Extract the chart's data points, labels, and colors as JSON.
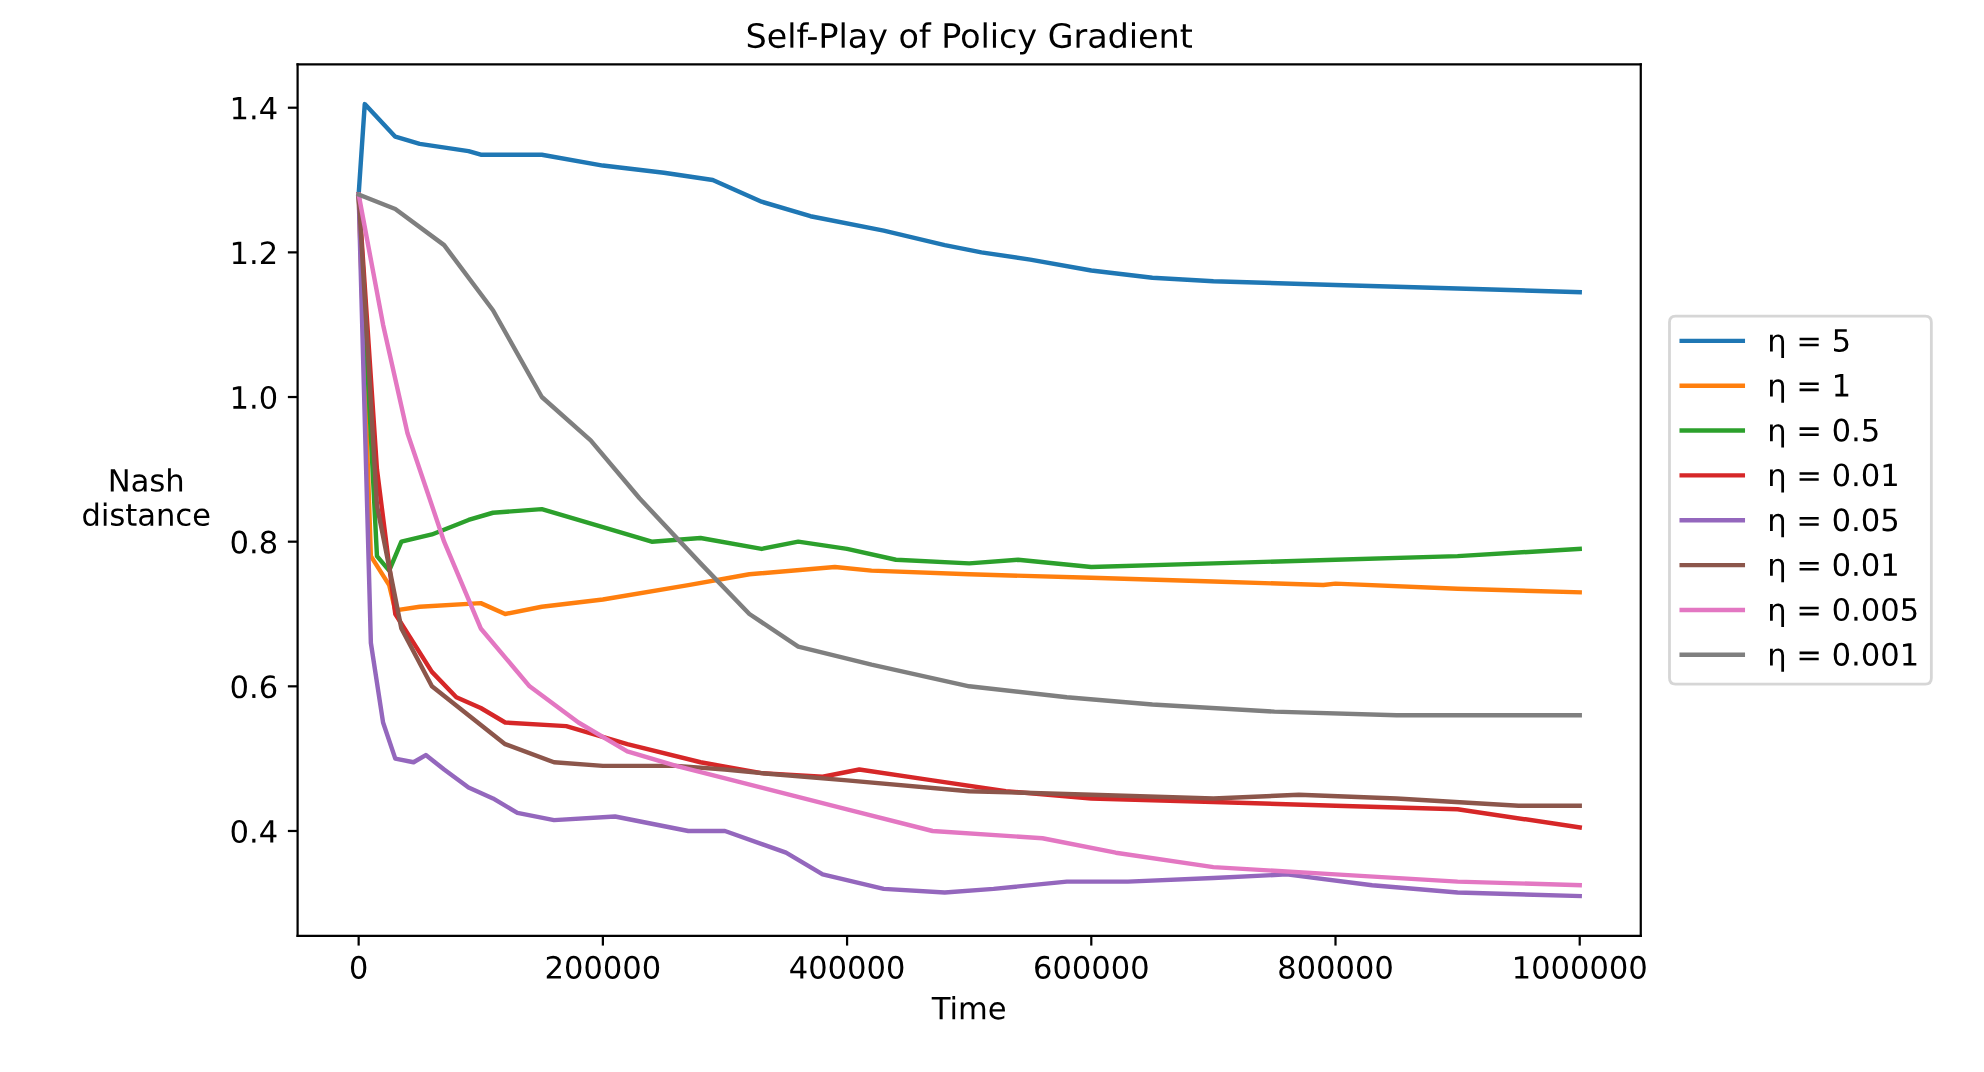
{
  "chart_data": {
    "type": "line",
    "title": "Self-Play of Policy Gradient",
    "xlabel": "Time",
    "ylabel": "Nash\ndistance",
    "xlim": [
      -50000,
      1050000
    ],
    "xticks": [
      0,
      200000,
      400000,
      600000,
      800000,
      1000000
    ],
    "ylim": [
      0.255,
      1.46
    ],
    "yticks": [
      0.4,
      0.6,
      0.8,
      {
        "value": 1.0,
        "label": "1.0"
      },
      1.2,
      1.4
    ],
    "grid": false,
    "legend": "right",
    "line_style": "solid",
    "marker": "none",
    "series": [
      {
        "name": "η = 5",
        "color": "#1f77b4",
        "x": [
          0,
          5000,
          30000,
          50000,
          90000,
          100000,
          150000,
          200000,
          250000,
          290000,
          330000,
          370000,
          430000,
          480000,
          510000,
          550000,
          600000,
          650000,
          700000,
          800000,
          900000,
          1000000
        ],
        "values": [
          1.28,
          1.405,
          1.36,
          1.35,
          1.34,
          1.335,
          1.335,
          1.32,
          1.31,
          1.3,
          1.27,
          1.25,
          1.23,
          1.21,
          1.2,
          1.19,
          1.175,
          1.165,
          1.16,
          1.155,
          1.15,
          1.145
        ]
      },
      {
        "name": "η = 1",
        "color": "#ff7f0e",
        "x": [
          0,
          10000,
          25000,
          30000,
          50000,
          100000,
          120000,
          150000,
          200000,
          270000,
          320000,
          390000,
          420000,
          500000,
          600000,
          700000,
          790000,
          800000,
          900000,
          1000000
        ],
        "values": [
          1.28,
          0.78,
          0.74,
          0.705,
          0.71,
          0.715,
          0.7,
          0.71,
          0.72,
          0.74,
          0.755,
          0.765,
          0.76,
          0.755,
          0.75,
          0.745,
          0.74,
          0.742,
          0.735,
          0.73
        ]
      },
      {
        "name": "η = 0.5",
        "color": "#2ca02c",
        "x": [
          0,
          15000,
          25000,
          35000,
          60000,
          90000,
          110000,
          150000,
          200000,
          240000,
          280000,
          330000,
          360000,
          400000,
          440000,
          500000,
          540000,
          600000,
          700000,
          800000,
          900000,
          1000000
        ],
        "values": [
          1.28,
          0.78,
          0.76,
          0.8,
          0.81,
          0.83,
          0.84,
          0.845,
          0.82,
          0.8,
          0.805,
          0.79,
          0.8,
          0.79,
          0.775,
          0.77,
          0.775,
          0.765,
          0.77,
          0.775,
          0.78,
          0.79
        ]
      },
      {
        "name": "η = 0.01",
        "color": "#d62728",
        "x": [
          0,
          15000,
          30000,
          60000,
          80000,
          100000,
          120000,
          170000,
          220000,
          280000,
          330000,
          380000,
          410000,
          470000,
          530000,
          600000,
          700000,
          800000,
          900000,
          1000000
        ],
        "values": [
          1.28,
          0.9,
          0.7,
          0.62,
          0.585,
          0.57,
          0.55,
          0.545,
          0.52,
          0.495,
          0.48,
          0.475,
          0.485,
          0.47,
          0.455,
          0.445,
          0.44,
          0.435,
          0.43,
          0.405
        ]
      },
      {
        "name": "η = 0.05",
        "color": "#9467bd",
        "x": [
          0,
          10000,
          20000,
          30000,
          45000,
          55000,
          70000,
          90000,
          110000,
          130000,
          160000,
          210000,
          270000,
          300000,
          350000,
          380000,
          430000,
          480000,
          520000,
          580000,
          630000,
          700000,
          760000,
          830000,
          900000,
          1000000
        ],
        "values": [
          1.28,
          0.66,
          0.55,
          0.5,
          0.495,
          0.505,
          0.485,
          0.46,
          0.445,
          0.425,
          0.415,
          0.42,
          0.4,
          0.4,
          0.37,
          0.34,
          0.32,
          0.315,
          0.32,
          0.33,
          0.33,
          0.335,
          0.34,
          0.325,
          0.315,
          0.31
        ]
      },
      {
        "name": "η = 0.01",
        "color": "#8c564b",
        "x": [
          0,
          15000,
          35000,
          60000,
          90000,
          120000,
          160000,
          200000,
          260000,
          300000,
          330000,
          400000,
          500000,
          600000,
          700000,
          770000,
          850000,
          950000,
          1000000
        ],
        "values": [
          1.28,
          0.85,
          0.68,
          0.6,
          0.56,
          0.52,
          0.495,
          0.49,
          0.49,
          0.485,
          0.48,
          0.47,
          0.455,
          0.45,
          0.445,
          0.45,
          0.445,
          0.435,
          0.435
        ]
      },
      {
        "name": "η = 0.005",
        "color": "#e377c2",
        "x": [
          0,
          20000,
          40000,
          70000,
          100000,
          140000,
          180000,
          220000,
          260000,
          330000,
          400000,
          470000,
          560000,
          620000,
          700000,
          800000,
          900000,
          1000000
        ],
        "values": [
          1.28,
          1.1,
          0.95,
          0.8,
          0.68,
          0.6,
          0.55,
          0.51,
          0.49,
          0.46,
          0.43,
          0.4,
          0.39,
          0.37,
          0.35,
          0.34,
          0.33,
          0.325
        ]
      },
      {
        "name": "η = 0.001",
        "color": "#7f7f7f",
        "x": [
          0,
          30000,
          70000,
          110000,
          150000,
          190000,
          230000,
          280000,
          320000,
          360000,
          420000,
          500000,
          580000,
          650000,
          750000,
          850000,
          1000000
        ],
        "values": [
          1.28,
          1.26,
          1.21,
          1.12,
          1.0,
          0.94,
          0.86,
          0.77,
          0.7,
          0.655,
          0.63,
          0.6,
          0.585,
          0.575,
          0.565,
          0.56,
          0.56
        ]
      }
    ]
  }
}
